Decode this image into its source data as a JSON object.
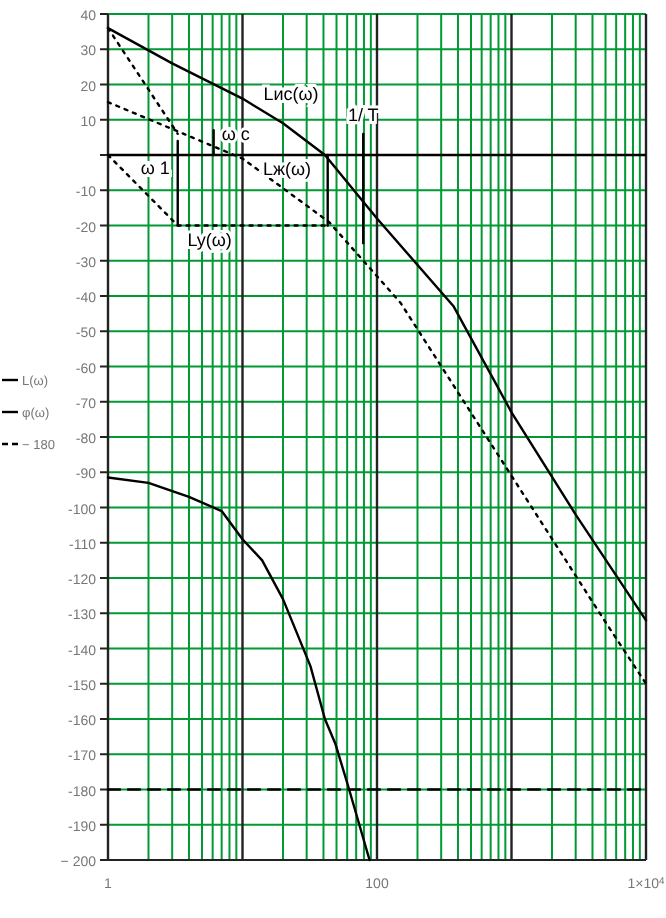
{
  "chart_data": {
    "type": "line",
    "log": "x",
    "grid": true,
    "legend": "left",
    "xlim": [
      1,
      10000
    ],
    "ylim": [
      -200,
      40
    ],
    "xticks": [
      {
        "value": 1,
        "label": "1"
      },
      {
        "value": 10,
        "label": null
      },
      {
        "value": 100,
        "label": "100"
      },
      {
        "value": 1000,
        "label": null
      },
      {
        "value": 10000,
        "label": "1×10$^{4}$"
      }
    ],
    "yticks": [
      40,
      30,
      20,
      10,
      {
        "value": 0,
        "label": null
      },
      -10,
      -20,
      -30,
      -40,
      -50,
      -60,
      -70,
      -80,
      -90,
      -100,
      -110,
      -120,
      -130,
      -140,
      -150,
      -160,
      -170,
      -180,
      -190,
      {
        "value": -200,
        "label": "− 200"
      }
    ],
    "series": [
      {
        "name": "L(ω)",
        "color": "#000000",
        "line_style": "solid",
        "x": [
          1,
          3,
          10,
          20,
          41,
          100,
          372,
          1000,
          3000,
          10000
        ],
        "values": [
          36,
          26,
          16,
          9,
          0,
          -18,
          -43,
          -73,
          -102,
          -132
        ]
      },
      {
        "name": "φ(ω)",
        "color": "#000000",
        "line_style": "solid",
        "x": [
          1,
          2,
          4,
          7,
          10,
          14,
          20,
          32,
          41,
          49,
          61,
          88
        ],
        "values": [
          -91.5,
          -93,
          -97,
          -101,
          -109,
          -115,
          -126,
          -145,
          -160,
          -167,
          -179,
          -200
        ]
      },
      {
        "name": "− 180",
        "color": "#000000",
        "line_style": "dashed",
        "x": [
          1,
          10000
        ],
        "values": [
          -180,
          -180
        ]
      },
      {
        "color": "#000000",
        "line_style": "dotted",
        "x": [
          1,
          3.3
        ],
        "values": [
          36,
          6
        ]
      },
      {
        "color": "#000000",
        "line_style": "dotted",
        "x": [
          1,
          10,
          44,
          150,
          1000,
          4900,
          10000
        ],
        "values": [
          15,
          -1,
          -19,
          -42,
          -91,
          -132,
          -150
        ]
      },
      {
        "color": "#000000",
        "line_style": "dotted",
        "x": [
          1,
          3.3,
          44
        ],
        "values": [
          0,
          -20,
          -20
        ]
      },
      {
        "color": "#000000",
        "line_style": "solid",
        "x": [
          3.3,
          3.3
        ],
        "values": [
          4,
          -20
        ]
      },
      {
        "color": "#000000",
        "line_style": "solid",
        "x": [
          6.1,
          6.1
        ],
        "values": [
          0,
          7
        ]
      },
      {
        "color": "#000000",
        "line_style": "solid",
        "x": [
          43,
          43
        ],
        "values": [
          0,
          -20
        ]
      },
      {
        "color": "#000000",
        "line_style": "solid",
        "x": [
          79,
          79
        ],
        "values": [
          6,
          -25
        ]
      }
    ],
    "ref_lines": [
      {
        "axis": "y",
        "value": 0,
        "color": "#000000"
      }
    ],
    "annotations": [
      {
        "text": "Lис(ω)",
        "x": 20,
        "y": 9
      },
      {
        "text": "Lж(ω)",
        "x": 20,
        "y": -9.4
      },
      {
        "text": "Ly(ω)",
        "x": 5.7,
        "y": -20
      },
      {
        "text": "ω 1",
        "x": 3.3,
        "y": -4
      },
      {
        "text": "ω c",
        "x": 6.1,
        "y": 4
      },
      {
        "text": "1/ T",
        "x": 79,
        "y": 6
      }
    ]
  }
}
